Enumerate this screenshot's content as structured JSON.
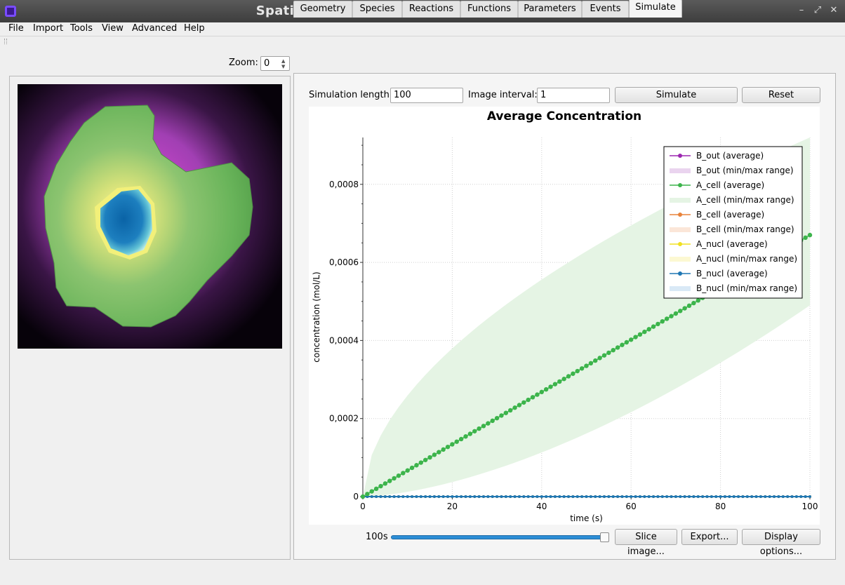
{
  "window": {
    "title": "Spatial Model Editor [very-simple-model.xml]"
  },
  "menu": [
    "File",
    "Import",
    "Tools",
    "View",
    "Advanced",
    "Help"
  ],
  "zoom": {
    "label": "Zoom:",
    "value": "0"
  },
  "tabs": [
    "Geometry",
    "Species",
    "Reactions",
    "Functions",
    "Parameters",
    "Events",
    "Simulate"
  ],
  "active_tab": "Simulate",
  "simulate": {
    "length_label": "Simulation length:",
    "length_value": "100",
    "interval_label": "Image interval:",
    "interval_value": "1",
    "simulate_button": "Simulate",
    "reset_button": "Reset",
    "time_label": "100s",
    "slice_button": "Slice image...",
    "export_button": "Export...",
    "display_button": "Display options...",
    "slider_fraction": 1.0
  },
  "chart_data": {
    "type": "line",
    "title": "Average Concentration",
    "xlabel": "time (s)",
    "ylabel": "concentration (mol/L)",
    "xlim": [
      0,
      100
    ],
    "ylim": [
      0,
      0.00092
    ],
    "xticks": [
      0,
      20,
      40,
      60,
      80,
      100
    ],
    "xtick_labels": [
      "0",
      "20",
      "40",
      "60",
      "80",
      "100"
    ],
    "yticks": [
      0,
      0.0002,
      0.0004,
      0.0006,
      0.0008
    ],
    "ytick_labels": [
      "0",
      "0,0002",
      "0,0004",
      "0,0006",
      "0,0008"
    ],
    "grid": true,
    "legend_position": "top-right",
    "series": [
      {
        "name": "B_out (average)",
        "color": "#9c27b0",
        "slope": 0,
        "range": {
          "name": "B_out (min/max range)",
          "color": "#ead4ef"
        }
      },
      {
        "name": "A_cell (average)",
        "color": "#3cb44b",
        "slope": 6.7e-06,
        "range": {
          "name": "A_cell (min/max range)",
          "color": "#e5f4e4",
          "min_at_100": 0.00049,
          "max_at_100": 0.00092
        }
      },
      {
        "name": "B_cell (average)",
        "color": "#e8833a",
        "slope": 0,
        "range": {
          "name": "B_cell (min/max range)",
          "color": "#fbe6d8"
        }
      },
      {
        "name": "A_nucl (average)",
        "color": "#f0e020",
        "slope": 0,
        "range": {
          "name": "A_nucl (min/max range)",
          "color": "#fcf8d2"
        }
      },
      {
        "name": "B_nucl (average)",
        "color": "#1f77b4",
        "slope": 0,
        "range": {
          "name": "B_nucl (min/max range)",
          "color": "#d9e9f6"
        }
      }
    ]
  }
}
